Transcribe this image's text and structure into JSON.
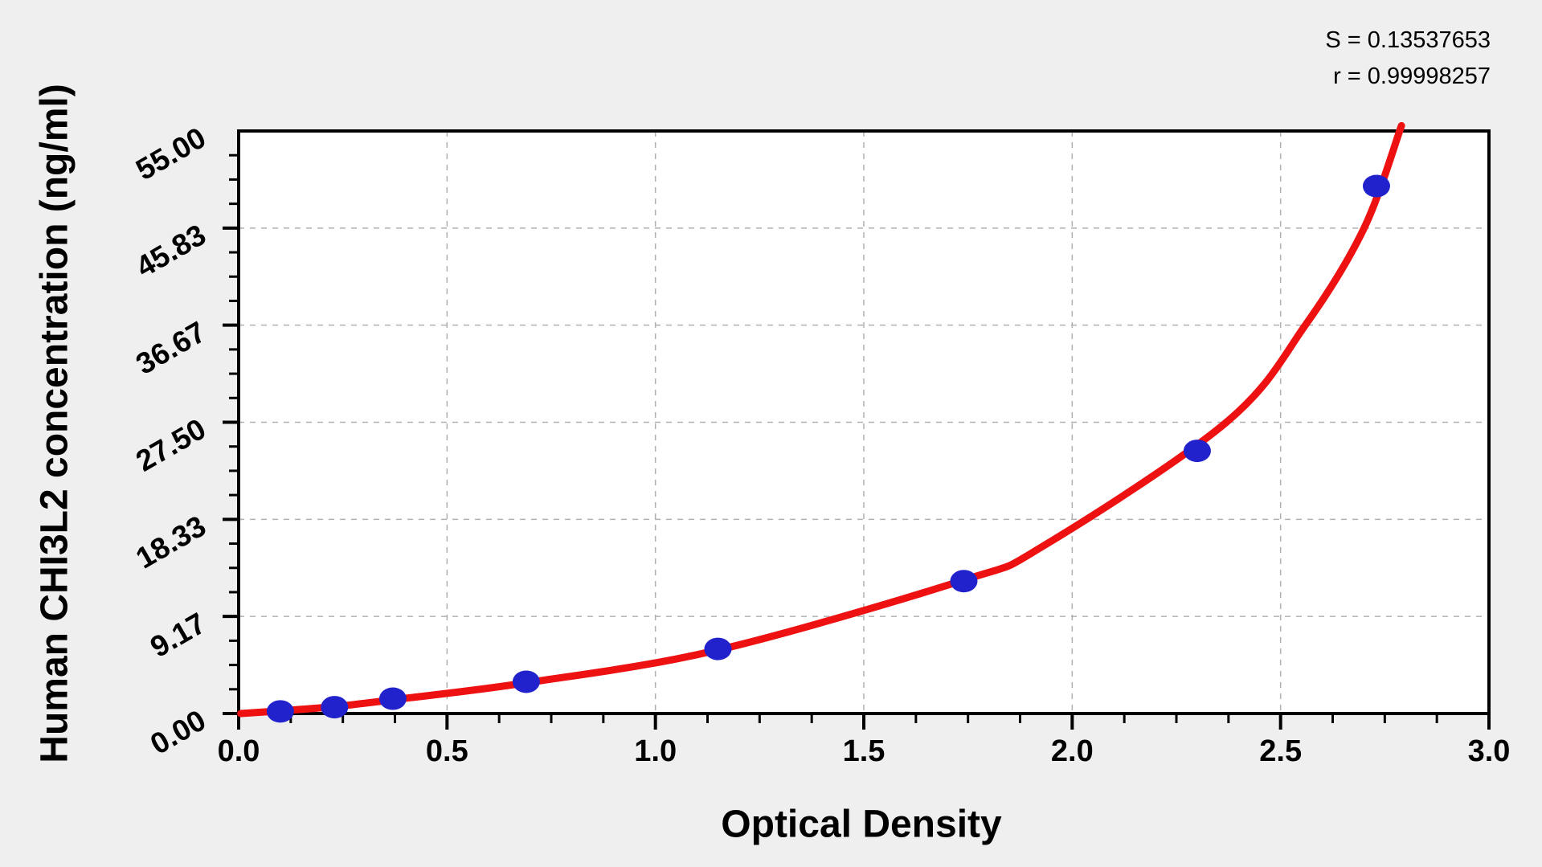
{
  "stats": {
    "s_text": "S = 0.13537653",
    "r_text": "r = 0.99998257"
  },
  "chart_data": {
    "type": "scatter",
    "title": "",
    "xlabel": "Optical Density",
    "ylabel": "Human CHI3L2 concentration (ng/ml)",
    "xlim": [
      0.0,
      3.0
    ],
    "ylim": [
      0.0,
      55.0
    ],
    "x_major_ticks": [
      0.0,
      0.5,
      1.0,
      1.5,
      2.0,
      2.5,
      3.0
    ],
    "x_tick_labels": [
      "0.0",
      "0.5",
      "1.0",
      "1.5",
      "2.0",
      "2.5",
      "3.0"
    ],
    "x_minor_step": 0.125,
    "y_major_ticks": [
      0.0,
      9.1667,
      18.3333,
      27.5,
      36.6667,
      45.8333,
      55.0
    ],
    "y_tick_labels": [
      "0.00",
      "9.17",
      "18.33",
      "27.50",
      "36.67",
      "45.83",
      "55.00"
    ],
    "y_minor_step": 2.29167,
    "grid": "dashed gridlines at major ticks, both axes",
    "legend": "none",
    "fit_S": 0.13537653,
    "fit_r": 0.99998257,
    "series": [
      {
        "name": "standard-points",
        "type": "scatter",
        "color": "#2222cc",
        "points": [
          [
            0.1,
            0.2
          ],
          [
            0.23,
            0.6
          ],
          [
            0.37,
            1.4
          ],
          [
            0.69,
            3.0
          ],
          [
            1.15,
            6.1
          ],
          [
            1.74,
            12.5
          ],
          [
            2.3,
            24.8
          ],
          [
            2.73,
            49.8
          ]
        ]
      },
      {
        "name": "fitted-curve",
        "type": "line",
        "color": "#ee1111",
        "points": [
          [
            0.005,
            0.0
          ],
          [
            0.1,
            0.25
          ],
          [
            0.23,
            0.65
          ],
          [
            0.37,
            1.3
          ],
          [
            0.69,
            2.9
          ],
          [
            1.15,
            6.0
          ],
          [
            1.74,
            12.6
          ],
          [
            1.93,
            15.8
          ],
          [
            2.37,
            27.5
          ],
          [
            2.56,
            36.7
          ],
          [
            2.7,
            45.8
          ],
          [
            2.79,
            55.5
          ]
        ]
      }
    ]
  },
  "colors": {
    "background": "#efefef",
    "plot_background": "#ffffff",
    "frame": "#000000",
    "gridline": "#b0b0b0",
    "curve": "#ee1111",
    "point": "#2222cc",
    "text": "#000000"
  }
}
